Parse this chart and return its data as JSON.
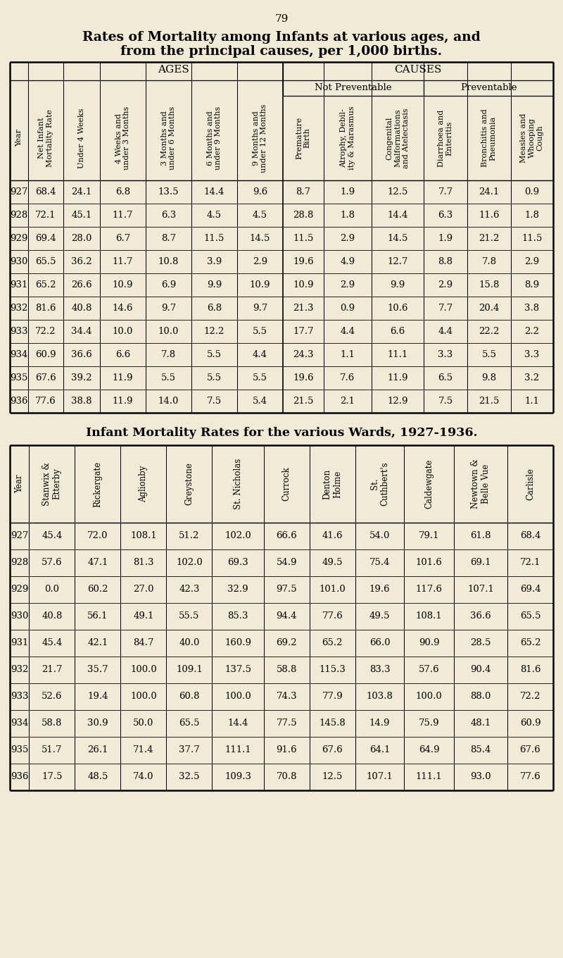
{
  "page_number": "79",
  "title1": "Rates of Mortality among Infants at various ages, and",
  "title2": "from the principal causes, per 1,000 births.",
  "title3": "Infant Mortality Rates for the various Wards, 1927-1936.",
  "bg_color": "#f0ead6",
  "table1": {
    "col_labels": [
      "Year",
      "Net Infant\nMortality Rate",
      "Under 4 Weeks",
      "4 Weeks and\nunder 3 Months",
      "3 Months and\nunder 6 Months",
      "6 Months and\nunder 9 Months",
      "9 Months and\nunder 12 Months",
      "Premature\nBirth",
      "Atrophy, Debil-\nity & Marasmus",
      "Congenital\nMalformations\nand Atelectasis",
      "Diarrhoea and\nEnteritis",
      "Bronchitis and\nPneumonia",
      "Measles and\nWhooping\nCough"
    ],
    "col_widths_rel": [
      26,
      50,
      52,
      65,
      65,
      65,
      65,
      58,
      68,
      74,
      62,
      62,
      60
    ],
    "rows": [
      [
        927,
        68.4,
        24.1,
        6.8,
        13.5,
        14.4,
        9.6,
        8.7,
        1.9,
        12.5,
        7.7,
        24.1,
        0.9
      ],
      [
        928,
        72.1,
        45.1,
        11.7,
        6.3,
        4.5,
        4.5,
        28.8,
        1.8,
        14.4,
        6.3,
        11.6,
        1.8
      ],
      [
        929,
        69.4,
        28.0,
        6.7,
        8.7,
        11.5,
        14.5,
        11.5,
        2.9,
        14.5,
        1.9,
        21.2,
        11.5
      ],
      [
        930,
        65.5,
        36.2,
        11.7,
        10.8,
        3.9,
        2.9,
        19.6,
        4.9,
        12.7,
        8.8,
        7.8,
        2.9
      ],
      [
        931,
        65.2,
        26.6,
        10.9,
        6.9,
        9.9,
        10.9,
        10.9,
        2.9,
        9.9,
        2.9,
        15.8,
        8.9
      ],
      [
        932,
        81.6,
        40.8,
        14.6,
        9.7,
        6.8,
        9.7,
        21.3,
        0.9,
        10.6,
        7.7,
        20.4,
        3.8
      ],
      [
        933,
        72.2,
        34.4,
        10.0,
        10.0,
        12.2,
        5.5,
        17.7,
        4.4,
        6.6,
        4.4,
        22.2,
        2.2
      ],
      [
        934,
        60.9,
        36.6,
        6.6,
        7.8,
        5.5,
        4.4,
        24.3,
        1.1,
        11.1,
        3.3,
        5.5,
        3.3
      ],
      [
        935,
        67.6,
        39.2,
        11.9,
        5.5,
        5.5,
        5.5,
        19.6,
        7.6,
        11.9,
        6.5,
        9.8,
        3.2
      ],
      [
        936,
        77.6,
        38.8,
        11.9,
        14.0,
        7.5,
        5.4,
        21.5,
        2.1,
        12.9,
        7.5,
        21.5,
        1.1
      ]
    ]
  },
  "table2": {
    "col_labels": [
      "Year",
      "Stanwix &\nEtterby",
      "Rickergate",
      "Aglionby",
      "Greystone",
      "St. Nicholas",
      "Currock",
      "Denton\nHolme",
      "St.\nCuthbert's",
      "Caldewgate",
      "Newtown &\nBelle Vue",
      "Carlisle"
    ],
    "col_widths_rel": [
      26,
      62,
      62,
      62,
      62,
      70,
      62,
      62,
      66,
      68,
      72,
      62
    ],
    "rows": [
      [
        927,
        45.4,
        72.0,
        108.1,
        51.2,
        102.0,
        66.6,
        41.6,
        54.0,
        79.1,
        61.8,
        68.4
      ],
      [
        928,
        57.6,
        47.1,
        81.3,
        102.0,
        69.3,
        54.9,
        49.5,
        75.4,
        101.6,
        69.1,
        72.1
      ],
      [
        929,
        0.0,
        60.2,
        27.0,
        42.3,
        32.9,
        97.5,
        101.0,
        19.6,
        117.6,
        107.1,
        69.4
      ],
      [
        930,
        40.8,
        56.1,
        49.1,
        55.5,
        85.3,
        94.4,
        77.6,
        49.5,
        108.1,
        36.6,
        65.5
      ],
      [
        931,
        45.4,
        42.1,
        84.7,
        40.0,
        160.9,
        69.2,
        65.2,
        66.0,
        90.9,
        28.5,
        65.2
      ],
      [
        932,
        21.7,
        35.7,
        100.0,
        109.1,
        137.5,
        58.8,
        115.3,
        83.3,
        57.6,
        90.4,
        81.6
      ],
      [
        933,
        52.6,
        19.4,
        100.0,
        60.8,
        100.0,
        74.3,
        77.9,
        103.8,
        100.0,
        88.0,
        72.2
      ],
      [
        934,
        58.8,
        30.9,
        50.0,
        65.5,
        14.4,
        77.5,
        145.8,
        14.9,
        75.9,
        48.1,
        60.9
      ],
      [
        935,
        51.7,
        26.1,
        71.4,
        37.7,
        111.1,
        91.6,
        67.6,
        64.1,
        64.9,
        85.4,
        67.6
      ],
      [
        936,
        17.5,
        48.5,
        74.0,
        32.5,
        109.3,
        70.8,
        12.5,
        107.1,
        111.1,
        93.0,
        77.6
      ]
    ]
  }
}
